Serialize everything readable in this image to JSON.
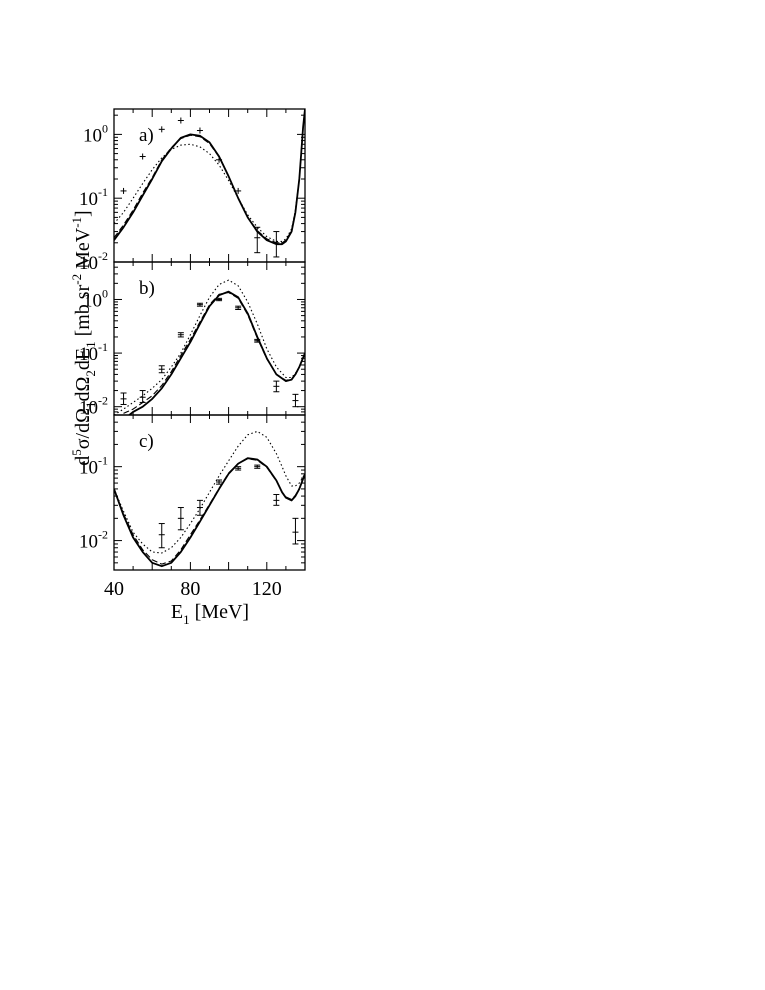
{
  "chart_data": {
    "type": "line",
    "ylabel": "d5σ/dΩ1dΩ2dE1 [mb sr-2 MeV-1]",
    "ylabel_parts": {
      "d": "d",
      "five": "5",
      "sigma": "σ/dΩ",
      "one_a": "1",
      "mid": "dΩ",
      "two": "2",
      "dE": "dE",
      "one_b": "1",
      "unit_open": " [mb sr",
      "minus2": "-2",
      "mev": " MeV",
      "minus1": "-1",
      "close": "]"
    },
    "xlabel": "E1 [MeV]",
    "xlabel_parts": {
      "E": "E",
      "sub": "1",
      "rest": " [MeV]"
    },
    "x_axis": {
      "range": [
        40,
        140
      ],
      "tick_labels": [
        "40",
        "80",
        "120"
      ],
      "tick_values": [
        40,
        80,
        120
      ]
    },
    "y_scale": "log",
    "panels": [
      {
        "label": "a)",
        "ylim": [
          0.01,
          2.5
        ],
        "ytick_labels": [
          {
            "base": "10",
            "exp": "0"
          },
          {
            "base": "10",
            "exp": "-1"
          },
          {
            "base": "10",
            "exp": "-2"
          }
        ],
        "ytick_values": [
          1,
          0.1,
          0.01
        ],
        "series": [
          {
            "style": "solid",
            "x": [
              40,
              45,
              50,
              55,
              60,
              65,
              70,
              75,
              80,
              85,
              90,
              95,
              100,
              105,
              110,
              115,
              120,
              125,
              128,
              130,
              133,
              135,
              137,
              138,
              139,
              140
            ],
            "y": [
              0.022,
              0.035,
              0.06,
              0.11,
              0.2,
              0.38,
              0.6,
              0.88,
              1.0,
              0.95,
              0.75,
              0.45,
              0.22,
              0.1,
              0.05,
              0.03,
              0.022,
              0.019,
              0.019,
              0.021,
              0.03,
              0.06,
              0.2,
              0.5,
              1.3,
              2.5
            ]
          },
          {
            "style": "dashed",
            "x": [
              40,
              45,
              50,
              55,
              60,
              65,
              70,
              75,
              80,
              85,
              90,
              95,
              100,
              105,
              110,
              115,
              120,
              125,
              128,
              130,
              133,
              135,
              137,
              138,
              139,
              140
            ],
            "y": [
              0.024,
              0.038,
              0.065,
              0.12,
              0.21,
              0.4,
              0.62,
              0.86,
              0.97,
              0.92,
              0.72,
              0.44,
              0.22,
              0.1,
              0.05,
              0.031,
              0.023,
              0.02,
              0.02,
              0.022,
              0.031,
              0.062,
              0.2,
              0.5,
              1.3,
              2.5
            ]
          },
          {
            "style": "dotted",
            "x": [
              40,
              45,
              50,
              55,
              60,
              65,
              70,
              75,
              80,
              85,
              90,
              95,
              100,
              105,
              110,
              115,
              120,
              125,
              128,
              130,
              133,
              135,
              137,
              138,
              139,
              140
            ],
            "y": [
              0.04,
              0.06,
              0.1,
              0.17,
              0.28,
              0.43,
              0.58,
              0.68,
              0.7,
              0.64,
              0.5,
              0.33,
              0.19,
              0.1,
              0.055,
              0.035,
              0.025,
              0.021,
              0.021,
              0.023,
              0.033,
              0.065,
              0.2,
              0.5,
              1.3,
              2.5
            ]
          }
        ],
        "points": [
          {
            "x": 45,
            "y": 0.13,
            "err": [
              0.13,
              0.13
            ]
          },
          {
            "x": 55,
            "y": 0.45,
            "err": [
              0.45,
              0.45
            ]
          },
          {
            "x": 65,
            "y": 1.2,
            "err": [
              1.2,
              1.2
            ]
          },
          {
            "x": 75,
            "y": 1.65,
            "err": [
              1.65,
              1.65
            ]
          },
          {
            "x": 85,
            "y": 1.15,
            "err": [
              1.15,
              1.15
            ]
          },
          {
            "x": 95,
            "y": 0.4,
            "err": [
              0.4,
              0.4
            ]
          },
          {
            "x": 105,
            "y": 0.13,
            "err": [
              0.13,
              0.13
            ]
          },
          {
            "x": 115,
            "y": 0.024,
            "err": [
              0.014,
              0.035
            ]
          },
          {
            "x": 125,
            "y": 0.02,
            "err": [
              0.012,
              0.03
            ]
          }
        ]
      },
      {
        "label": "b)",
        "ylim": [
          0.007,
          5
        ],
        "ytick_labels": [
          {
            "base": "10",
            "exp": "0"
          },
          {
            "base": "10",
            "exp": "-1"
          },
          {
            "base": "10",
            "exp": "-2"
          }
        ],
        "ytick_values": [
          1,
          0.1,
          0.01
        ],
        "series": [
          {
            "style": "solid",
            "x": [
              48,
              50,
              55,
              60,
              65,
              70,
              75,
              80,
              85,
              90,
              95,
              100,
              105,
              110,
              115,
              120,
              125,
              130,
              133,
              135,
              137,
              140
            ],
            "y": [
              0.007,
              0.008,
              0.01,
              0.014,
              0.022,
              0.04,
              0.08,
              0.16,
              0.35,
              0.75,
              1.2,
              1.4,
              1.1,
              0.55,
              0.2,
              0.08,
              0.04,
              0.03,
              0.032,
              0.04,
              0.055,
              0.1
            ]
          },
          {
            "style": "dashed",
            "x": [
              45,
              50,
              55,
              60,
              65,
              70,
              75,
              80,
              85,
              90,
              95,
              100,
              105,
              110,
              115,
              120,
              125,
              130,
              133,
              135,
              137,
              140
            ],
            "y": [
              0.0075,
              0.009,
              0.012,
              0.016,
              0.025,
              0.045,
              0.09,
              0.18,
              0.38,
              0.8,
              1.25,
              1.35,
              1.05,
              0.52,
              0.19,
              0.078,
              0.04,
              0.031,
              0.033,
              0.041,
              0.056,
              0.1
            ]
          },
          {
            "style": "dotted",
            "x": [
              40,
              45,
              50,
              55,
              60,
              65,
              70,
              75,
              80,
              85,
              90,
              95,
              100,
              105,
              110,
              115,
              120,
              125,
              130,
              133,
              135,
              137,
              140
            ],
            "y": [
              0.007,
              0.009,
              0.012,
              0.016,
              0.022,
              0.032,
              0.055,
              0.1,
              0.22,
              0.5,
              1.1,
              1.9,
              2.3,
              1.8,
              0.9,
              0.35,
              0.12,
              0.055,
              0.035,
              0.035,
              0.042,
              0.055,
              0.1
            ]
          }
        ],
        "points": [
          {
            "x": 45,
            "y": 0.014,
            "err": [
              0.011,
              0.018
            ]
          },
          {
            "x": 55,
            "y": 0.015,
            "err": [
              0.012,
              0.02
            ]
          },
          {
            "x": 65,
            "y": 0.05,
            "err": [
              0.043,
              0.058
            ]
          },
          {
            "x": 75,
            "y": 0.22,
            "err": [
              0.2,
              0.24
            ]
          },
          {
            "x": 85,
            "y": 0.8,
            "err": [
              0.75,
              0.85
            ]
          },
          {
            "x": 95,
            "y": 1.0,
            "err": [
              0.95,
              1.05
            ]
          },
          {
            "x": 105,
            "y": 0.7,
            "err": [
              0.65,
              0.75
            ]
          },
          {
            "x": 115,
            "y": 0.17,
            "err": [
              0.16,
              0.18
            ]
          },
          {
            "x": 125,
            "y": 0.024,
            "err": [
              0.019,
              0.03
            ]
          },
          {
            "x": 135,
            "y": 0.013,
            "err": [
              0.01,
              0.017
            ]
          }
        ]
      },
      {
        "label": "c)",
        "ylim": [
          0.004,
          0.5
        ],
        "ytick_labels": [
          {
            "base": "10",
            "exp": "-1"
          },
          {
            "base": "10",
            "exp": "-2"
          }
        ],
        "ytick_values": [
          0.1,
          0.01
        ],
        "series": [
          {
            "style": "solid",
            "x": [
              40,
              45,
              50,
              55,
              60,
              65,
              70,
              75,
              80,
              85,
              90,
              95,
              100,
              105,
              110,
              115,
              120,
              125,
              128,
              130,
              133,
              135,
              137,
              140
            ],
            "y": [
              0.05,
              0.022,
              0.011,
              0.007,
              0.005,
              0.0045,
              0.005,
              0.007,
              0.011,
              0.018,
              0.03,
              0.05,
              0.08,
              0.11,
              0.13,
              0.125,
              0.1,
              0.065,
              0.045,
              0.038,
              0.035,
              0.04,
              0.05,
              0.08
            ]
          },
          {
            "style": "dashed",
            "x": [
              40,
              45,
              50,
              55,
              60,
              65,
              70,
              75,
              80,
              85,
              90,
              95,
              100,
              105,
              110,
              115,
              120,
              125,
              128,
              130,
              133,
              135,
              137,
              140
            ],
            "y": [
              0.05,
              0.023,
              0.012,
              0.0075,
              0.0055,
              0.0048,
              0.0053,
              0.0075,
              0.012,
              0.019,
              0.031,
              0.051,
              0.082,
              0.11,
              0.128,
              0.122,
              0.098,
              0.064,
              0.045,
              0.039,
              0.036,
              0.041,
              0.051,
              0.08
            ]
          },
          {
            "style": "dotted",
            "x": [
              40,
              45,
              50,
              55,
              60,
              65,
              70,
              75,
              80,
              85,
              90,
              95,
              100,
              105,
              110,
              115,
              120,
              125,
              128,
              130,
              133,
              135,
              137,
              140
            ],
            "y": [
              0.05,
              0.025,
              0.013,
              0.009,
              0.007,
              0.0068,
              0.008,
              0.011,
              0.017,
              0.027,
              0.045,
              0.075,
              0.12,
              0.19,
              0.27,
              0.3,
              0.25,
              0.15,
              0.1,
              0.075,
              0.055,
              0.055,
              0.06,
              0.08
            ]
          }
        ],
        "points": [
          {
            "x": 65,
            "y": 0.012,
            "err": [
              0.008,
              0.017
            ]
          },
          {
            "x": 75,
            "y": 0.02,
            "err": [
              0.014,
              0.028
            ]
          },
          {
            "x": 85,
            "y": 0.028,
            "err": [
              0.022,
              0.035
            ]
          },
          {
            "x": 95,
            "y": 0.062,
            "err": [
              0.058,
              0.066
            ]
          },
          {
            "x": 105,
            "y": 0.095,
            "err": [
              0.09,
              0.1
            ]
          },
          {
            "x": 115,
            "y": 0.1,
            "err": [
              0.095,
              0.105
            ]
          },
          {
            "x": 125,
            "y": 0.035,
            "err": [
              0.03,
              0.042
            ]
          },
          {
            "x": 135,
            "y": 0.013,
            "err": [
              0.009,
              0.02
            ]
          }
        ]
      }
    ]
  }
}
